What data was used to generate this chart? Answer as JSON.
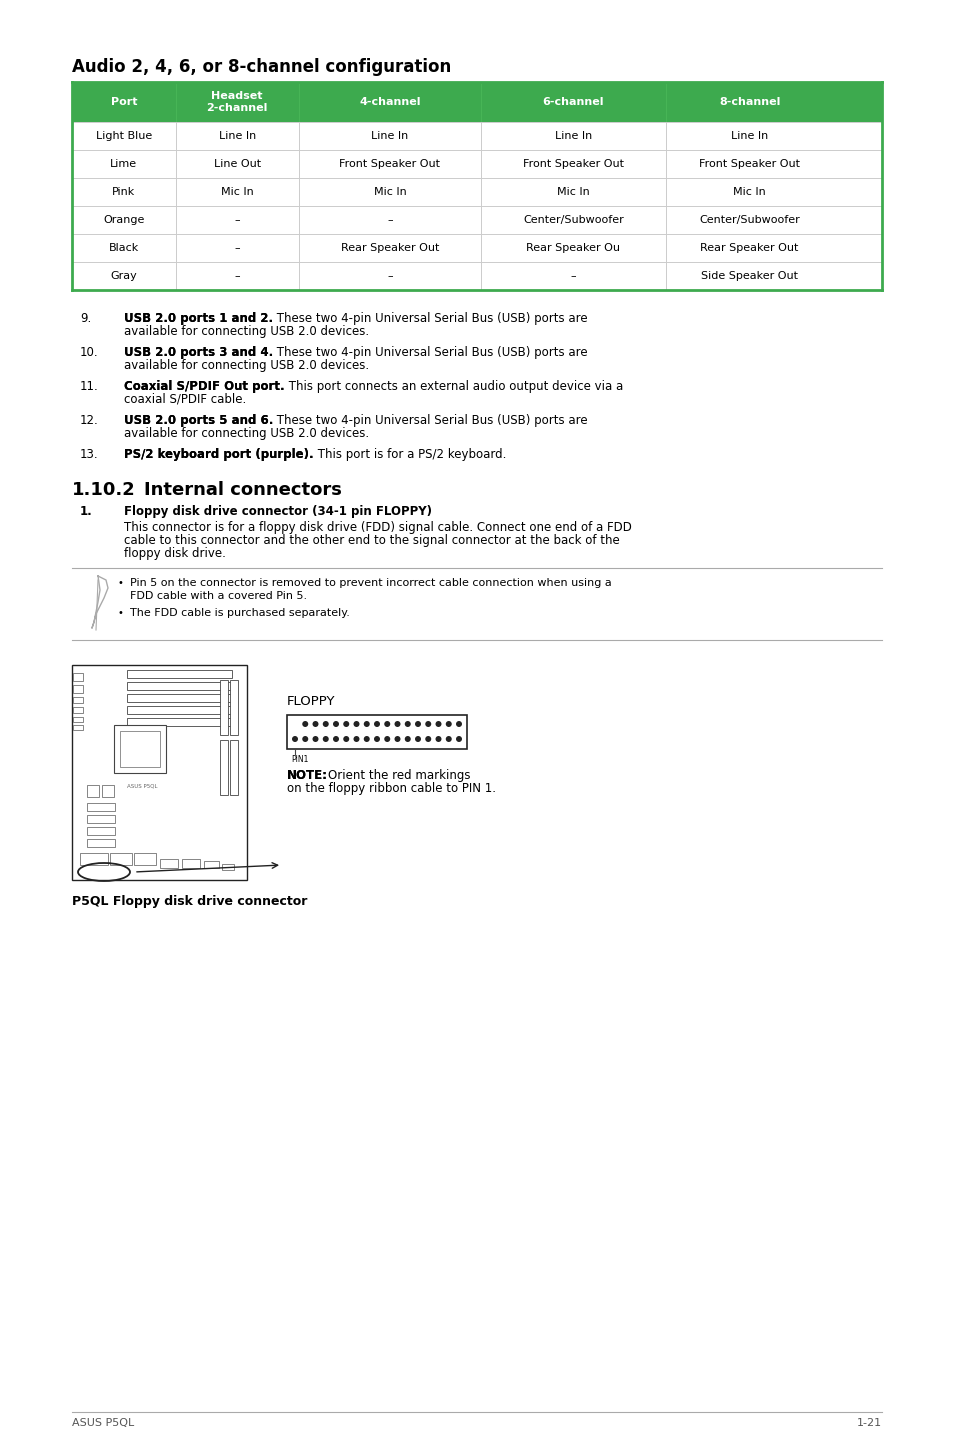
{
  "title": "Audio 2, 4, 6, or 8-channel configuration",
  "section_title": "1.10.2",
  "section_title2": "Internal connectors",
  "table_header_bg": "#3daa4e",
  "table_header_text": "#ffffff",
  "table_border_color": "#3daa4e",
  "table_separator_color": "#cccccc",
  "headers": [
    "Port",
    "Headset\n2-channel",
    "4-channel",
    "6-channel",
    "8-channel"
  ],
  "rows": [
    [
      "Light Blue",
      "Line In",
      "Line In",
      "Line In",
      "Line In"
    ],
    [
      "Lime",
      "Line Out",
      "Front Speaker Out",
      "Front Speaker Out",
      "Front Speaker Out"
    ],
    [
      "Pink",
      "Mic In",
      "Mic In",
      "Mic In",
      "Mic In"
    ],
    [
      "Orange",
      "–",
      "–",
      "Center/Subwoofer",
      "Center/Subwoofer"
    ],
    [
      "Black",
      "–",
      "Rear Speaker Out",
      "Rear Speaker Ou",
      "Rear Speaker Out"
    ],
    [
      "Gray",
      "–",
      "–",
      "–",
      "Side Speaker Out"
    ]
  ],
  "numbered_items": [
    {
      "num": "9.",
      "bold": "USB 2.0 ports 1 and 2.",
      "text": " These two 4-pin Universal Serial Bus (USB) ports are available for connecting USB 2.0 devices."
    },
    {
      "num": "10.",
      "bold": "USB 2.0 ports 3 and 4.",
      "text": " These two 4-pin Universal Serial Bus (USB) ports are available for connecting USB 2.0 devices."
    },
    {
      "num": "11.",
      "bold": "Coaxial S/PDIF Out port.",
      "text": " This port connects an external audio output device via a coaxial S/PDIF cable."
    },
    {
      "num": "12.",
      "bold": "USB 2.0 ports 5 and 6.",
      "text": " These two 4-pin Universal Serial Bus (USB) ports are available for connecting USB 2.0 devices."
    },
    {
      "num": "13.",
      "bold": "PS/2 keyboard port (purple).",
      "text": " This port is for a PS/2 keyboard."
    }
  ],
  "note_bullet1_line1": "Pin 5 on the connector is removed to prevent incorrect cable connection when using a",
  "note_bullet1_line2": "FDD cable with a covered Pin 5.",
  "note_bullet2": "The FDD cable is purchased separately.",
  "subsection_num": "1.",
  "subsection_title": "Floppy disk drive connector (34-1 pin FLOPPY)",
  "subsection_body_line1": "This connector is for a floppy disk drive (FDD) signal cable. Connect one end of a FDD",
  "subsection_body_line2": "cable to this connector and the other end to the signal connector at the back of the",
  "subsection_body_line3": "floppy disk drive.",
  "floppy_label": "FLOPPY",
  "pin1_label": "PIN1",
  "note_bold": "NOTE:",
  "note_text_line1": "Orient the red markings",
  "note_text_line2": "on the floppy ribbon cable to PIN 1.",
  "caption": "P5QL Floppy disk drive connector",
  "footer_left": "ASUS P5QL",
  "footer_right": "1-21",
  "bg_color": "#ffffff",
  "text_color": "#000000",
  "gray_text": "#555555",
  "line_color": "#aaaaaa",
  "font_size_title": 12,
  "font_size_body": 8.5,
  "font_size_table": 8,
  "font_size_section": 13,
  "font_size_subsection": 8.5,
  "font_size_footer": 8,
  "font_size_caption": 9
}
